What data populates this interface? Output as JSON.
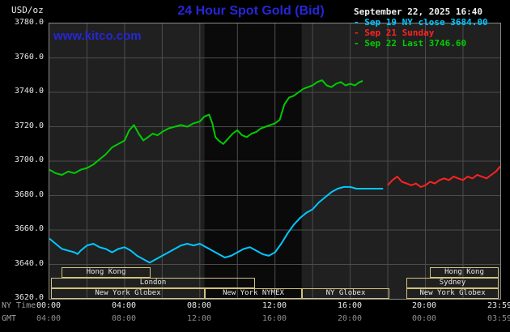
{
  "colors": {
    "title_blue": "#2626d8",
    "kitco_blue": "#2626d8",
    "plot_bg": "#202020",
    "band": "#0a0a0a",
    "grid": "#4d4d4d",
    "plot_border": "#8a8a8a",
    "session_border": "#d2c27c",
    "cyan_series": "#00c8ff",
    "red_series": "#ff2222",
    "green_series": "#00cc00"
  },
  "header": {
    "unit_label": "USD/oz",
    "title": "24 Hour Spot Gold (Bid)",
    "datetime": "September 22, 2025 16:40",
    "watermark": "www.kitco.com",
    "legend": [
      {
        "label": "- Sep 19 NY close 3684.00",
        "color": "#00c8ff"
      },
      {
        "label": "- Sep 21 Sunday",
        "color": "#ff2222"
      },
      {
        "label": "- Sep 22 Last 3746.60",
        "color": "#00cc00"
      }
    ]
  },
  "axes": {
    "ny_time_label": "NY Time",
    "gmt_label": "GMT",
    "yticks": [
      "3780.0",
      "3760.0",
      "3740.0",
      "3720.0",
      "3700.0",
      "3680.0",
      "3660.0",
      "3640.0",
      "3620.0"
    ],
    "xticks": [
      {
        "min": 0,
        "ny": "00:00",
        "gmt": "04:00"
      },
      {
        "min": 240,
        "ny": "04:00",
        "gmt": "08:00"
      },
      {
        "min": 480,
        "ny": "08:00",
        "gmt": "12:00"
      },
      {
        "min": 720,
        "ny": "12:00",
        "gmt": "16:00"
      },
      {
        "min": 960,
        "ny": "16:00",
        "gmt": "20:00"
      },
      {
        "min": 1200,
        "ny": "20:00",
        "gmt": "00:00"
      },
      {
        "min": 1439,
        "ny": "23:59",
        "gmt": "03:59"
      }
    ]
  },
  "sessions": [
    {
      "row": 0,
      "start_min": 40,
      "end_min": 325,
      "label": "Hong Kong"
    },
    {
      "row": 0,
      "start_min": 1215,
      "end_min": 1435,
      "label": "Hong Kong"
    },
    {
      "row": 1,
      "start_min": 5,
      "end_min": 655,
      "label": "London"
    },
    {
      "row": 1,
      "start_min": 1140,
      "end_min": 1435,
      "label": "Sydney"
    },
    {
      "row": 2,
      "start_min": 5,
      "end_min": 495,
      "label": "New York Globex"
    },
    {
      "row": 2,
      "start_min": 495,
      "end_min": 805,
      "label": "New York NYMEX"
    },
    {
      "row": 2,
      "start_min": 805,
      "end_min": 1085,
      "label": "NY Globex"
    },
    {
      "row": 2,
      "start_min": 1140,
      "end_min": 1435,
      "label": "New York Globex"
    }
  ],
  "chart_data": {
    "type": "line",
    "title": "24 Hour Spot Gold (Bid)",
    "ylabel": "USD/oz",
    "xlabel": "NY Time (hours), GMT offset +4h",
    "ylim": [
      3620,
      3780
    ],
    "ytick_step": 20,
    "xlim": [
      0,
      1439
    ],
    "x_unit": "minutes since 00:00 NY time",
    "grid": true,
    "legend_position": "top-right",
    "shaded_band_min": [
      495,
      805
    ],
    "series": [
      {
        "name": "Sep 19 NY close",
        "color": "#00c8ff",
        "close_value": 3684.0,
        "points": [
          [
            0,
            3655
          ],
          [
            20,
            3652
          ],
          [
            40,
            3649
          ],
          [
            60,
            3648
          ],
          [
            80,
            3647
          ],
          [
            90,
            3646
          ],
          [
            100,
            3648
          ],
          [
            120,
            3651
          ],
          [
            140,
            3652
          ],
          [
            160,
            3650
          ],
          [
            180,
            3649
          ],
          [
            200,
            3647
          ],
          [
            220,
            3649
          ],
          [
            240,
            3650
          ],
          [
            260,
            3648
          ],
          [
            280,
            3645
          ],
          [
            300,
            3643
          ],
          [
            320,
            3641
          ],
          [
            340,
            3643
          ],
          [
            360,
            3645
          ],
          [
            380,
            3647
          ],
          [
            400,
            3649
          ],
          [
            420,
            3651
          ],
          [
            440,
            3652
          ],
          [
            460,
            3651
          ],
          [
            480,
            3652
          ],
          [
            500,
            3650
          ],
          [
            520,
            3648
          ],
          [
            540,
            3646
          ],
          [
            560,
            3644
          ],
          [
            580,
            3645
          ],
          [
            600,
            3647
          ],
          [
            620,
            3649
          ],
          [
            640,
            3650
          ],
          [
            660,
            3648
          ],
          [
            680,
            3646
          ],
          [
            700,
            3645
          ],
          [
            720,
            3647
          ],
          [
            740,
            3652
          ],
          [
            760,
            3658
          ],
          [
            780,
            3663
          ],
          [
            800,
            3667
          ],
          [
            820,
            3670
          ],
          [
            840,
            3672
          ],
          [
            860,
            3676
          ],
          [
            880,
            3679
          ],
          [
            900,
            3682
          ],
          [
            920,
            3684
          ],
          [
            940,
            3685
          ],
          [
            960,
            3685
          ],
          [
            980,
            3684
          ],
          [
            1010,
            3684
          ],
          [
            1040,
            3684
          ],
          [
            1065,
            3684
          ]
        ]
      },
      {
        "name": "Sep 21 Sunday",
        "color": "#ff2222",
        "points": [
          [
            1080,
            3686
          ],
          [
            1095,
            3689
          ],
          [
            1110,
            3691
          ],
          [
            1125,
            3688
          ],
          [
            1140,
            3687
          ],
          [
            1155,
            3686
          ],
          [
            1170,
            3687
          ],
          [
            1185,
            3685
          ],
          [
            1200,
            3686
          ],
          [
            1215,
            3688
          ],
          [
            1230,
            3687
          ],
          [
            1245,
            3689
          ],
          [
            1260,
            3690
          ],
          [
            1275,
            3689
          ],
          [
            1290,
            3691
          ],
          [
            1305,
            3690
          ],
          [
            1320,
            3689
          ],
          [
            1335,
            3691
          ],
          [
            1350,
            3690
          ],
          [
            1365,
            3692
          ],
          [
            1380,
            3691
          ],
          [
            1395,
            3690
          ],
          [
            1410,
            3692
          ],
          [
            1425,
            3694
          ],
          [
            1439,
            3697
          ]
        ]
      },
      {
        "name": "Sep 22",
        "color": "#00cc00",
        "last_value": 3746.6,
        "points": [
          [
            0,
            3695
          ],
          [
            20,
            3693
          ],
          [
            40,
            3692
          ],
          [
            60,
            3694
          ],
          [
            80,
            3693
          ],
          [
            100,
            3695
          ],
          [
            120,
            3696
          ],
          [
            140,
            3698
          ],
          [
            160,
            3701
          ],
          [
            180,
            3704
          ],
          [
            200,
            3708
          ],
          [
            220,
            3710
          ],
          [
            240,
            3712
          ],
          [
            255,
            3718
          ],
          [
            270,
            3721
          ],
          [
            285,
            3716
          ],
          [
            300,
            3712
          ],
          [
            315,
            3714
          ],
          [
            330,
            3716
          ],
          [
            345,
            3715
          ],
          [
            360,
            3717
          ],
          [
            380,
            3719
          ],
          [
            400,
            3720
          ],
          [
            420,
            3721
          ],
          [
            440,
            3720
          ],
          [
            460,
            3722
          ],
          [
            480,
            3723
          ],
          [
            495,
            3726
          ],
          [
            510,
            3727
          ],
          [
            520,
            3722
          ],
          [
            530,
            3714
          ],
          [
            540,
            3712
          ],
          [
            555,
            3710
          ],
          [
            570,
            3713
          ],
          [
            585,
            3716
          ],
          [
            600,
            3718
          ],
          [
            615,
            3715
          ],
          [
            630,
            3714
          ],
          [
            645,
            3716
          ],
          [
            660,
            3717
          ],
          [
            675,
            3719
          ],
          [
            690,
            3720
          ],
          [
            705,
            3721
          ],
          [
            720,
            3722
          ],
          [
            735,
            3724
          ],
          [
            750,
            3733
          ],
          [
            765,
            3737
          ],
          [
            780,
            3738
          ],
          [
            795,
            3740
          ],
          [
            810,
            3742
          ],
          [
            825,
            3743
          ],
          [
            840,
            3744
          ],
          [
            855,
            3746
          ],
          [
            870,
            3747
          ],
          [
            885,
            3744
          ],
          [
            900,
            3743
          ],
          [
            915,
            3745
          ],
          [
            930,
            3746
          ],
          [
            945,
            3744
          ],
          [
            960,
            3745
          ],
          [
            975,
            3744
          ],
          [
            990,
            3746
          ],
          [
            1000,
            3746.6
          ]
        ]
      }
    ]
  }
}
